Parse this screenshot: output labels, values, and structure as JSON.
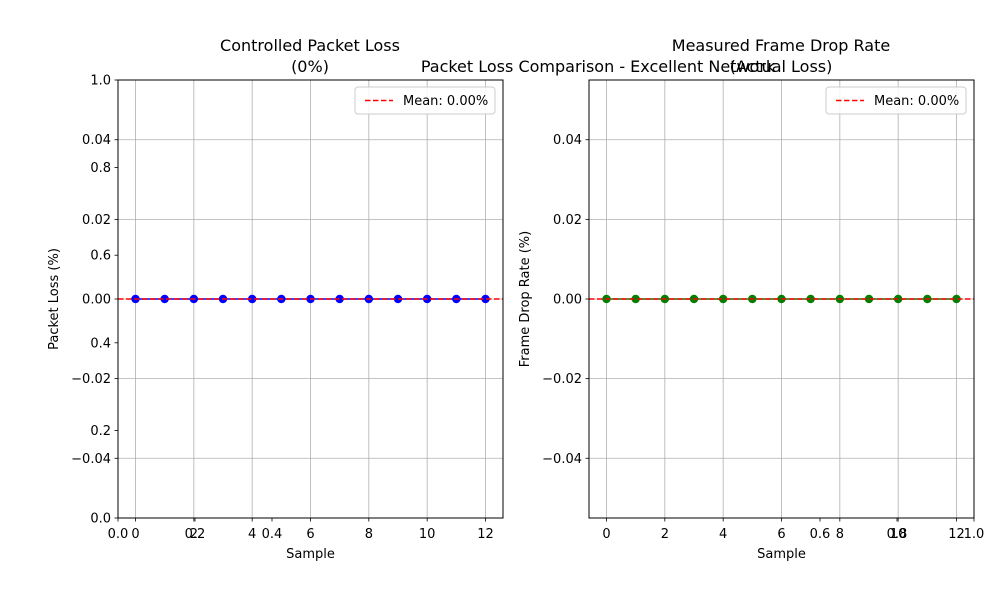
{
  "suptitle": "Packet Loss Comparison - Excellent Network",
  "colors": {
    "grid": "#b0b0b0",
    "mean_line": "#ff0000",
    "background": "#ffffff"
  },
  "chart_data": [
    {
      "type": "line",
      "title_lines": [
        "Controlled Packet Loss",
        "(0%)"
      ],
      "xlabel": "Sample",
      "ylabel": "Packet Loss (%)",
      "x": [
        0,
        1,
        2,
        3,
        4,
        5,
        6,
        7,
        8,
        9,
        10,
        11,
        12
      ],
      "x_ticks": [
        "0",
        "2",
        "4",
        "6",
        "8",
        "10",
        "12"
      ],
      "x_tick_values": [
        0,
        2,
        4,
        6,
        8,
        10,
        12
      ],
      "xlim": [
        -0.6,
        12.6
      ],
      "ylim": [
        -0.055,
        0.055
      ],
      "y_ticks": [
        "−0.04",
        "−0.02",
        "0.00",
        "0.02",
        "0.04"
      ],
      "y_tick_values": [
        -0.04,
        -0.02,
        0.0,
        0.02,
        0.04
      ],
      "grid": true,
      "series": [
        {
          "values": [
            0,
            0,
            0,
            0,
            0,
            0,
            0,
            0,
            0,
            0,
            0,
            0,
            0
          ],
          "color": "#0000ff",
          "marker": "circle"
        }
      ],
      "mean_line": {
        "value": 0.0,
        "label": "Mean: 0.00%",
        "style": "dashed",
        "color": "#ff0000"
      },
      "legend_position": "top-right",
      "overlay_axis": {
        "x_ticks": [
          "0.0",
          "0.2",
          "0.4"
        ],
        "x_tick_values": [
          0.0,
          0.2,
          0.4
        ],
        "y_ticks": [
          "0.0",
          "0.2",
          "0.4",
          "0.6",
          "0.8",
          "1.0"
        ],
        "y_tick_values": [
          0.0,
          0.2,
          0.4,
          0.6,
          0.8,
          1.0
        ],
        "range": [
          0,
          1
        ]
      }
    },
    {
      "type": "line",
      "title_lines": [
        "Measured Frame Drop Rate",
        "(Actual Loss)"
      ],
      "xlabel": "Sample",
      "ylabel": "Frame Drop Rate (%)",
      "x": [
        0,
        1,
        2,
        3,
        4,
        5,
        6,
        7,
        8,
        9,
        10,
        11,
        12
      ],
      "x_ticks": [
        "0",
        "2",
        "4",
        "6",
        "8",
        "10",
        "12"
      ],
      "x_tick_values": [
        0,
        2,
        4,
        6,
        8,
        10,
        12
      ],
      "xlim": [
        -0.6,
        12.6
      ],
      "ylim": [
        -0.055,
        0.055
      ],
      "y_ticks": [
        "−0.04",
        "−0.02",
        "0.00",
        "0.02",
        "0.04"
      ],
      "y_tick_values": [
        -0.04,
        -0.02,
        0.0,
        0.02,
        0.04
      ],
      "grid": true,
      "series": [
        {
          "values": [
            0,
            0,
            0,
            0,
            0,
            0,
            0,
            0,
            0,
            0,
            0,
            0,
            0
          ],
          "color": "#008000",
          "marker": "circle"
        }
      ],
      "mean_line": {
        "value": 0.0,
        "label": "Mean: 0.00%",
        "style": "dashed",
        "color": "#ff0000"
      },
      "legend_position": "top-right",
      "overlay_axis": {
        "x_ticks": [
          "0.6",
          "0.8",
          "1.0"
        ],
        "x_tick_values": [
          0.6,
          0.8,
          1.0
        ],
        "range": [
          0,
          1
        ]
      }
    }
  ]
}
